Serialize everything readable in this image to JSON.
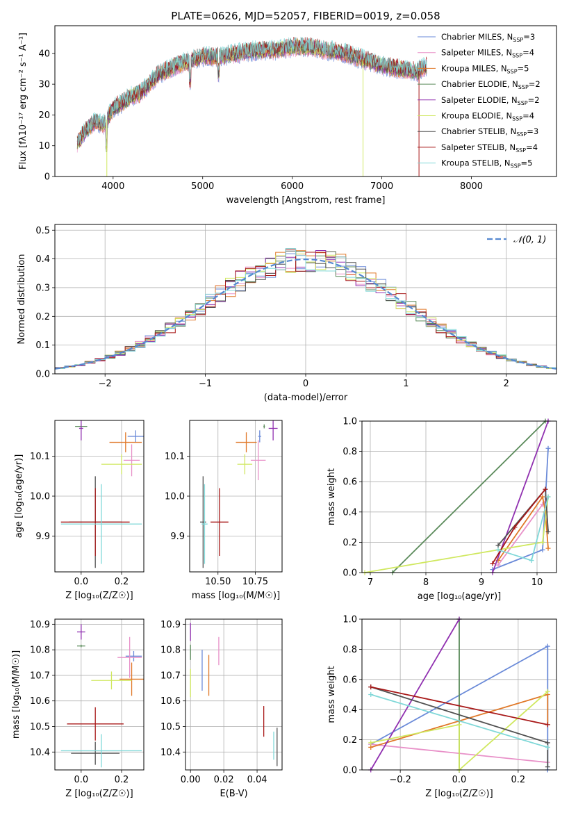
{
  "colors": {
    "Chabrier MILES": "#6a8ad8",
    "Salpeter MILES": "#e890c8",
    "Kroupa MILES": "#e07828",
    "Chabrier ELODIE": "#5a8a5a",
    "Salpeter ELODIE": "#9030b0",
    "Kroupa ELODIE": "#d0e860",
    "Chabrier STELIB": "#505050",
    "Salpeter STELIB": "#a81818",
    "Kroupa STELIB": "#80d8d8",
    "gauss": "#5588d0"
  },
  "chart_data": [
    {
      "id": "spectrum",
      "type": "line",
      "title": "PLATE=0626, MJD=52057, FIBERID=0019, z=0.058",
      "xlabel": "wavelength [Angstrom, rest frame]",
      "ylabel": "Flux [fλ10⁻¹⁷ erg cm⁻² s⁻¹ A⁻¹]",
      "xlim": [
        3350,
        8950
      ],
      "ylim": [
        0,
        49
      ],
      "xticks": [
        "4000",
        "5000",
        "6000",
        "7000",
        "8000"
      ],
      "yticks": [
        "0",
        "10",
        "20",
        "30",
        "40"
      ],
      "grid": false,
      "legend_position": "top-right",
      "series": [
        {
          "name": "Chabrier MILES, N",
          "suffix": "=3"
        },
        {
          "name": "Salpeter MILES, N",
          "suffix": "=4"
        },
        {
          "name": "Kroupa MILES, N",
          "suffix": "=5"
        },
        {
          "name": "Chabrier ELODIE, N",
          "suffix": "=2"
        },
        {
          "name": "Salpeter ELODIE, N",
          "suffix": "=2"
        },
        {
          "name": "Kroupa ELODIE, N",
          "suffix": "=4"
        },
        {
          "name": "Chabrier STELIB, N",
          "suffix": "=3"
        },
        {
          "name": "Salpeter STELIB, N",
          "suffix": "=4"
        },
        {
          "name": "Kroupa STELIB, N",
          "suffix": "=5"
        }
      ],
      "legend_sub": "SSP",
      "profile": {
        "wavelength": [
          3600,
          3700,
          3800,
          3900,
          4000,
          4100,
          4200,
          4300,
          4400,
          4500,
          4700,
          5000,
          5200,
          5400,
          5600,
          5800,
          6000,
          6200,
          6400,
          6600,
          6800,
          7000,
          7200,
          7400,
          7500
        ],
        "flux": [
          11,
          15,
          18,
          17,
          22,
          24,
          26,
          27,
          30,
          33,
          36,
          39,
          39,
          40,
          41,
          41,
          42,
          42,
          41,
          40,
          38,
          36,
          35,
          34,
          36
        ]
      }
    },
    {
      "id": "residuals",
      "type": "histogram",
      "xlabel": "(data-model)/error",
      "ylabel": "Normed distribution",
      "xlim": [
        -2.5,
        2.5
      ],
      "ylim": [
        0,
        0.52
      ],
      "xticks": [
        "−2",
        "−1",
        "0",
        "1",
        "2"
      ],
      "yticks": [
        "0.0",
        "0.1",
        "0.2",
        "0.3",
        "0.4",
        "0.5"
      ],
      "grid": true,
      "legend": [
        "𝒩(0, 1)"
      ],
      "legend_position": "top-right",
      "bin_width": 0.1
    },
    {
      "id": "age-vs-Z",
      "type": "errorbar",
      "xlabel": "Z [log₁₀(Z/Z☉)]",
      "ylabel": "age  [log₁₀(age/yr)]",
      "xlim": [
        -0.13,
        0.31
      ],
      "ylim": [
        9.81,
        10.19
      ],
      "xticks": [
        {
          "v": 0.0,
          "t": "0.0"
        },
        {
          "v": 0.2,
          "t": "0.2"
        }
      ],
      "yticks": [
        {
          "v": 9.9,
          "t": "9.9"
        },
        {
          "v": 10.0,
          "t": "10.0"
        },
        {
          "v": 10.1,
          "t": "10.1"
        }
      ],
      "points": [
        {
          "s": "Chabrier MILES",
          "x": 0.27,
          "y": 10.15,
          "dx": 0.04,
          "dy": 0.015
        },
        {
          "s": "Salpeter MILES",
          "x": 0.25,
          "y": 10.09,
          "dx": 0.04,
          "dy": 0.04
        },
        {
          "s": "Kroupa MILES",
          "x": 0.22,
          "y": 10.135,
          "dx": 0.08,
          "dy": 0.025
        },
        {
          "s": "Chabrier ELODIE",
          "x": 0.0,
          "y": 10.175,
          "dx": 0.03,
          "dy": 0.005
        },
        {
          "s": "Salpeter ELODIE",
          "x": 0.0,
          "y": 10.17,
          "dx": 0.01,
          "dy": 0.03
        },
        {
          "s": "Kroupa ELODIE",
          "x": 0.2,
          "y": 10.08,
          "dx": 0.1,
          "dy": 0.025
        },
        {
          "s": "Chabrier STELIB",
          "x": 0.07,
          "y": 9.935,
          "dx": 0.13,
          "dy": 0.115
        },
        {
          "s": "Salpeter STELIB",
          "x": 0.07,
          "y": 9.935,
          "dx": 0.17,
          "dy": 0.085
        },
        {
          "s": "Kroupa STELIB",
          "x": 0.1,
          "y": 9.93,
          "dx": 0.2,
          "dy": 0.1
        }
      ]
    },
    {
      "id": "age-vs-mass",
      "type": "errorbar",
      "xlabel": "mass [log₁₀(M/M☉)]",
      "ylabel": "",
      "xlim": [
        10.31,
        10.93
      ],
      "ylim": [
        9.81,
        10.19
      ],
      "xticks": [
        {
          "v": 10.5,
          "t": "10.50"
        },
        {
          "v": 10.75,
          "t": "10.75"
        }
      ],
      "yticks": [
        {
          "v": 9.9,
          "t": "9.9"
        },
        {
          "v": 10.0,
          "t": "10.0"
        },
        {
          "v": 10.1,
          "t": "10.1"
        }
      ],
      "points": [
        {
          "s": "Chabrier MILES",
          "x": 10.78,
          "y": 10.15,
          "dx": 0.01,
          "dy": 0.015
        },
        {
          "s": "Salpeter MILES",
          "x": 10.77,
          "y": 10.09,
          "dx": 0.05,
          "dy": 0.05
        },
        {
          "s": "Kroupa MILES",
          "x": 10.69,
          "y": 10.135,
          "dx": 0.07,
          "dy": 0.025
        },
        {
          "s": "Chabrier ELODIE",
          "x": 10.81,
          "y": 10.175,
          "dx": 0.005,
          "dy": 0.005
        },
        {
          "s": "Salpeter ELODIE",
          "x": 10.87,
          "y": 10.17,
          "dx": 0.03,
          "dy": 0.03
        },
        {
          "s": "Kroupa ELODIE",
          "x": 10.68,
          "y": 10.08,
          "dx": 0.05,
          "dy": 0.025
        },
        {
          "s": "Chabrier STELIB",
          "x": 10.4,
          "y": 9.935,
          "dx": 0.02,
          "dy": 0.115
        },
        {
          "s": "Salpeter STELIB",
          "x": 10.51,
          "y": 9.935,
          "dx": 0.06,
          "dy": 0.085
        },
        {
          "s": "Kroupa STELIB",
          "x": 10.41,
          "y": 9.93,
          "dx": 0.02,
          "dy": 0.1
        }
      ]
    },
    {
      "id": "weight-vs-age",
      "type": "line",
      "xlabel": "age  [log₁₀(age/yr)]",
      "ylabel": "mass weight",
      "xlim": [
        6.85,
        10.35
      ],
      "ylim": [
        0,
        1
      ],
      "xticks": [
        {
          "v": 7,
          "t": "7"
        },
        {
          "v": 8,
          "t": "8"
        },
        {
          "v": 9,
          "t": "9"
        },
        {
          "v": 10,
          "t": "10"
        }
      ],
      "yticks": [
        {
          "v": 0,
          "t": "0.0"
        },
        {
          "v": 0.2,
          "t": "0.2"
        },
        {
          "v": 0.4,
          "t": "0.4"
        },
        {
          "v": 0.6,
          "t": "0.6"
        },
        {
          "v": 0.8,
          "t": "0.8"
        },
        {
          "v": 1,
          "t": "1.0"
        }
      ],
      "lines": [
        {
          "s": "Chabrier MILES",
          "x": [
            9.2,
            10.1,
            10.2
          ],
          "y": [
            0.02,
            0.15,
            0.82
          ]
        },
        {
          "s": "Salpeter MILES",
          "x": [
            9.3,
            10.1,
            10.2
          ],
          "y": [
            0.05,
            0.45,
            0.5
          ]
        },
        {
          "s": "Kroupa MILES",
          "x": [
            9.3,
            10.1,
            10.15,
            10.2
          ],
          "y": [
            0.08,
            0.5,
            0.4,
            0.16
          ]
        },
        {
          "s": "Chabrier ELODIE",
          "x": [
            7.4,
            10.15
          ],
          "y": [
            0.0,
            1.0
          ]
        },
        {
          "s": "Salpeter ELODIE",
          "x": [
            9.2,
            10.2
          ],
          "y": [
            0.0,
            1.0
          ]
        },
        {
          "s": "Kroupa ELODIE",
          "x": [
            6.9,
            10.1,
            10.2
          ],
          "y": [
            0.0,
            0.2,
            0.5
          ]
        },
        {
          "s": "Chabrier STELIB",
          "x": [
            9.3,
            10.15,
            10.2
          ],
          "y": [
            0.18,
            0.55,
            0.27
          ]
        },
        {
          "s": "Salpeter STELIB",
          "x": [
            9.2,
            9.6,
            10.15
          ],
          "y": [
            0.06,
            0.3,
            0.55
          ]
        },
        {
          "s": "Kroupa STELIB",
          "x": [
            9.3,
            9.9,
            10.2
          ],
          "y": [
            0.15,
            0.08,
            0.5
          ]
        }
      ]
    },
    {
      "id": "mass-vs-Z",
      "type": "errorbar",
      "xlabel": "Z [log₁₀(Z/Z☉)]",
      "ylabel": "mass [log₁₀(M/M☉)]",
      "xlim": [
        -0.13,
        0.31
      ],
      "ylim": [
        10.33,
        10.92
      ],
      "xticks": [
        {
          "v": 0.0,
          "t": "0.0"
        },
        {
          "v": 0.2,
          "t": "0.2"
        }
      ],
      "yticks": [
        {
          "v": 10.4,
          "t": "10.4"
        },
        {
          "v": 10.5,
          "t": "10.5"
        },
        {
          "v": 10.6,
          "t": "10.6"
        },
        {
          "v": 10.7,
          "t": "10.7"
        },
        {
          "v": 10.8,
          "t": "10.8"
        },
        {
          "v": 10.9,
          "t": "10.9"
        }
      ],
      "points": [
        {
          "s": "Chabrier MILES",
          "x": 0.26,
          "y": 10.775,
          "dx": 0.04,
          "dy": 0.02
        },
        {
          "s": "Salpeter MILES",
          "x": 0.24,
          "y": 10.77,
          "dx": 0.06,
          "dy": 0.08
        },
        {
          "s": "Kroupa MILES",
          "x": 0.25,
          "y": 10.685,
          "dx": 0.06,
          "dy": 0.065
        },
        {
          "s": "Chabrier ELODIE",
          "x": 0.0,
          "y": 10.815,
          "dx": 0.02,
          "dy": 0.005
        },
        {
          "s": "Salpeter ELODIE",
          "x": 0.0,
          "y": 10.87,
          "dx": 0.02,
          "dy": 0.03
        },
        {
          "s": "Kroupa ELODIE",
          "x": 0.15,
          "y": 10.68,
          "dx": 0.1,
          "dy": 0.035
        },
        {
          "s": "Chabrier STELIB",
          "x": 0.07,
          "y": 10.395,
          "dx": 0.12,
          "dy": 0.045
        },
        {
          "s": "Salpeter STELIB",
          "x": 0.07,
          "y": 10.51,
          "dx": 0.14,
          "dy": 0.065
        },
        {
          "s": "Kroupa STELIB",
          "x": 0.1,
          "y": 10.405,
          "dx": 0.2,
          "dy": 0.065
        }
      ]
    },
    {
      "id": "mass-vs-ebv",
      "type": "errorbar",
      "xlabel": "E(B-V)",
      "ylabel": "",
      "xlim": [
        -0.003,
        0.055
      ],
      "ylim": [
        10.33,
        10.92
      ],
      "xticks": [
        {
          "v": 0.0,
          "t": "0.00"
        },
        {
          "v": 0.02,
          "t": "0.02"
        },
        {
          "v": 0.04,
          "t": "0.04"
        }
      ],
      "yticks": [
        {
          "v": 10.4,
          "t": "10.4"
        },
        {
          "v": 10.5,
          "t": "10.5"
        },
        {
          "v": 10.6,
          "t": "10.6"
        },
        {
          "v": 10.7,
          "t": "10.7"
        },
        {
          "v": 10.8,
          "t": "10.8"
        },
        {
          "v": 10.9,
          "t": "10.9"
        }
      ],
      "points": [
        {
          "s": "Chabrier MILES",
          "x": 0.007,
          "y": 10.72,
          "dx": 0.0,
          "dy": 0.08
        },
        {
          "s": "Salpeter MILES",
          "x": 0.017,
          "y": 10.795,
          "dx": 0.0,
          "dy": 0.055
        },
        {
          "s": "Kroupa MILES",
          "x": 0.011,
          "y": 10.7,
          "dx": 0.0,
          "dy": 0.08
        },
        {
          "s": "Chabrier ELODIE",
          "x": 0.0,
          "y": 10.79,
          "dx": 0.0,
          "dy": 0.03
        },
        {
          "s": "Salpeter ELODIE",
          "x": 0.0,
          "y": 10.87,
          "dx": 0.0,
          "dy": 0.035
        },
        {
          "s": "Kroupa ELODIE",
          "x": 0.0,
          "y": 10.67,
          "dx": 0.0,
          "dy": 0.055
        },
        {
          "s": "Chabrier STELIB",
          "x": 0.052,
          "y": 10.42,
          "dx": 0.0,
          "dy": 0.075
        },
        {
          "s": "Salpeter STELIB",
          "x": 0.044,
          "y": 10.52,
          "dx": 0.0,
          "dy": 0.06
        },
        {
          "s": "Kroupa STELIB",
          "x": 0.05,
          "y": 10.425,
          "dx": 0.0,
          "dy": 0.055
        }
      ]
    },
    {
      "id": "weight-vs-Z",
      "type": "line",
      "xlabel": "Z [log₁₀(Z/Z☉)]",
      "ylabel": "mass weight",
      "xlim": [
        -0.33,
        0.33
      ],
      "ylim": [
        0,
        1
      ],
      "xticks": [
        {
          "v": -0.2,
          "t": "−0.2"
        },
        {
          "v": 0.0,
          "t": "0.0"
        },
        {
          "v": 0.2,
          "t": "0.2"
        }
      ],
      "yticks": [
        {
          "v": 0,
          "t": "0.0"
        },
        {
          "v": 0.2,
          "t": "0.2"
        },
        {
          "v": 0.4,
          "t": "0.4"
        },
        {
          "v": 0.6,
          "t": "0.6"
        },
        {
          "v": 0.8,
          "t": "0.8"
        },
        {
          "v": 1,
          "t": "1.0"
        }
      ],
      "lines": [
        {
          "s": "Chabrier MILES",
          "x": [
            -0.3,
            0.3,
            0.3
          ],
          "y": [
            0.17,
            0.82,
            0.0
          ]
        },
        {
          "s": "Salpeter MILES",
          "x": [
            -0.3,
            0.3
          ],
          "y": [
            0.17,
            0.05
          ]
        },
        {
          "s": "Kroupa MILES",
          "x": [
            -0.3,
            0.3,
            0.3
          ],
          "y": [
            0.15,
            0.5,
            0.3
          ]
        },
        {
          "s": "Chabrier ELODIE",
          "x": [
            0.0,
            0.0
          ],
          "y": [
            1.0,
            0.0
          ]
        },
        {
          "s": "Salpeter ELODIE",
          "x": [
            -0.3,
            0.0
          ],
          "y": [
            0.0,
            1.0
          ]
        },
        {
          "s": "Kroupa ELODIE",
          "x": [
            -0.3,
            0.0,
            0.0,
            0.3
          ],
          "y": [
            0.18,
            0.3,
            0.0,
            0.52
          ]
        },
        {
          "s": "Chabrier STELIB",
          "x": [
            -0.3,
            0.3,
            0.3
          ],
          "y": [
            0.55,
            0.18,
            0.02
          ]
        },
        {
          "s": "Salpeter STELIB",
          "x": [
            -0.3,
            0.3
          ],
          "y": [
            0.55,
            0.3
          ]
        },
        {
          "s": "Kroupa STELIB",
          "x": [
            -0.3,
            0.3
          ],
          "y": [
            0.5,
            0.15
          ]
        }
      ]
    }
  ]
}
